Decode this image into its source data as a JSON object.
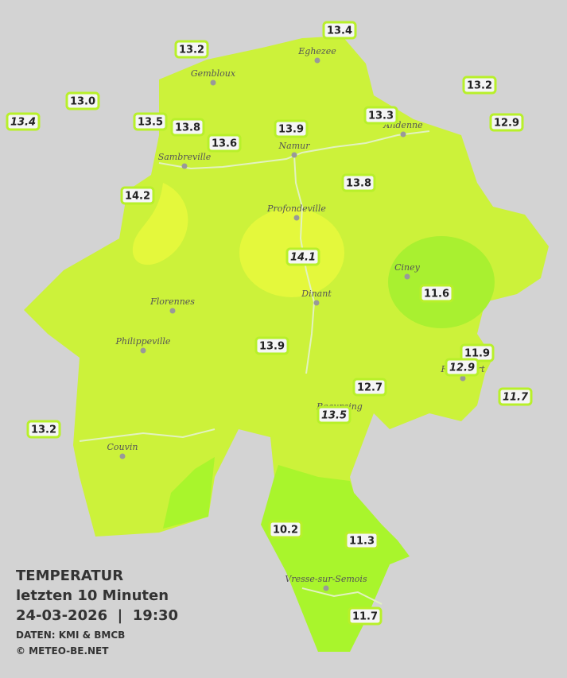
{
  "legend": {
    "heading": "TEMPERATUR",
    "subtitle": "letzten 10 Minuten",
    "datetime": "24-03-2026  |  19:30",
    "source": "DATEN: KMI & BMCB",
    "copyright": "© METEO-BE.NET"
  },
  "towns": [
    "Eghezee",
    "Gembloux",
    "Andenne",
    "Namur",
    "Sambreville",
    "Profondeville",
    "Ciney",
    "Dinant",
    "Florennes",
    "Philippeville",
    "Couvin",
    "Vresse-sur-Semois",
    "Beauraing",
    "Rochefort"
  ],
  "stations": [
    {
      "value": "13.4",
      "italic": false
    },
    {
      "value": "13.2",
      "italic": false
    },
    {
      "value": "13.2",
      "italic": false
    },
    {
      "value": "13.0",
      "italic": false
    },
    {
      "value": "13.4",
      "italic": true
    },
    {
      "value": "13.5",
      "italic": false
    },
    {
      "value": "13.8",
      "italic": false
    },
    {
      "value": "13.3",
      "italic": false
    },
    {
      "value": "12.9",
      "italic": false
    },
    {
      "value": "13.9",
      "italic": false
    },
    {
      "value": "13.6",
      "italic": false
    },
    {
      "value": "14.2",
      "italic": false
    },
    {
      "value": "13.8",
      "italic": false
    },
    {
      "value": "14.1",
      "italic": true
    },
    {
      "value": "11.6",
      "italic": false
    },
    {
      "value": "13.9",
      "italic": false
    },
    {
      "value": "11.9",
      "italic": false
    },
    {
      "value": "12.9",
      "italic": true
    },
    {
      "value": "12.7",
      "italic": false
    },
    {
      "value": "11.7",
      "italic": true
    },
    {
      "value": "13.5",
      "italic": true
    },
    {
      "value": "13.2",
      "italic": false
    },
    {
      "value": "10.2",
      "italic": false
    },
    {
      "value": "11.3",
      "italic": false
    },
    {
      "value": "11.7",
      "italic": false
    }
  ]
}
